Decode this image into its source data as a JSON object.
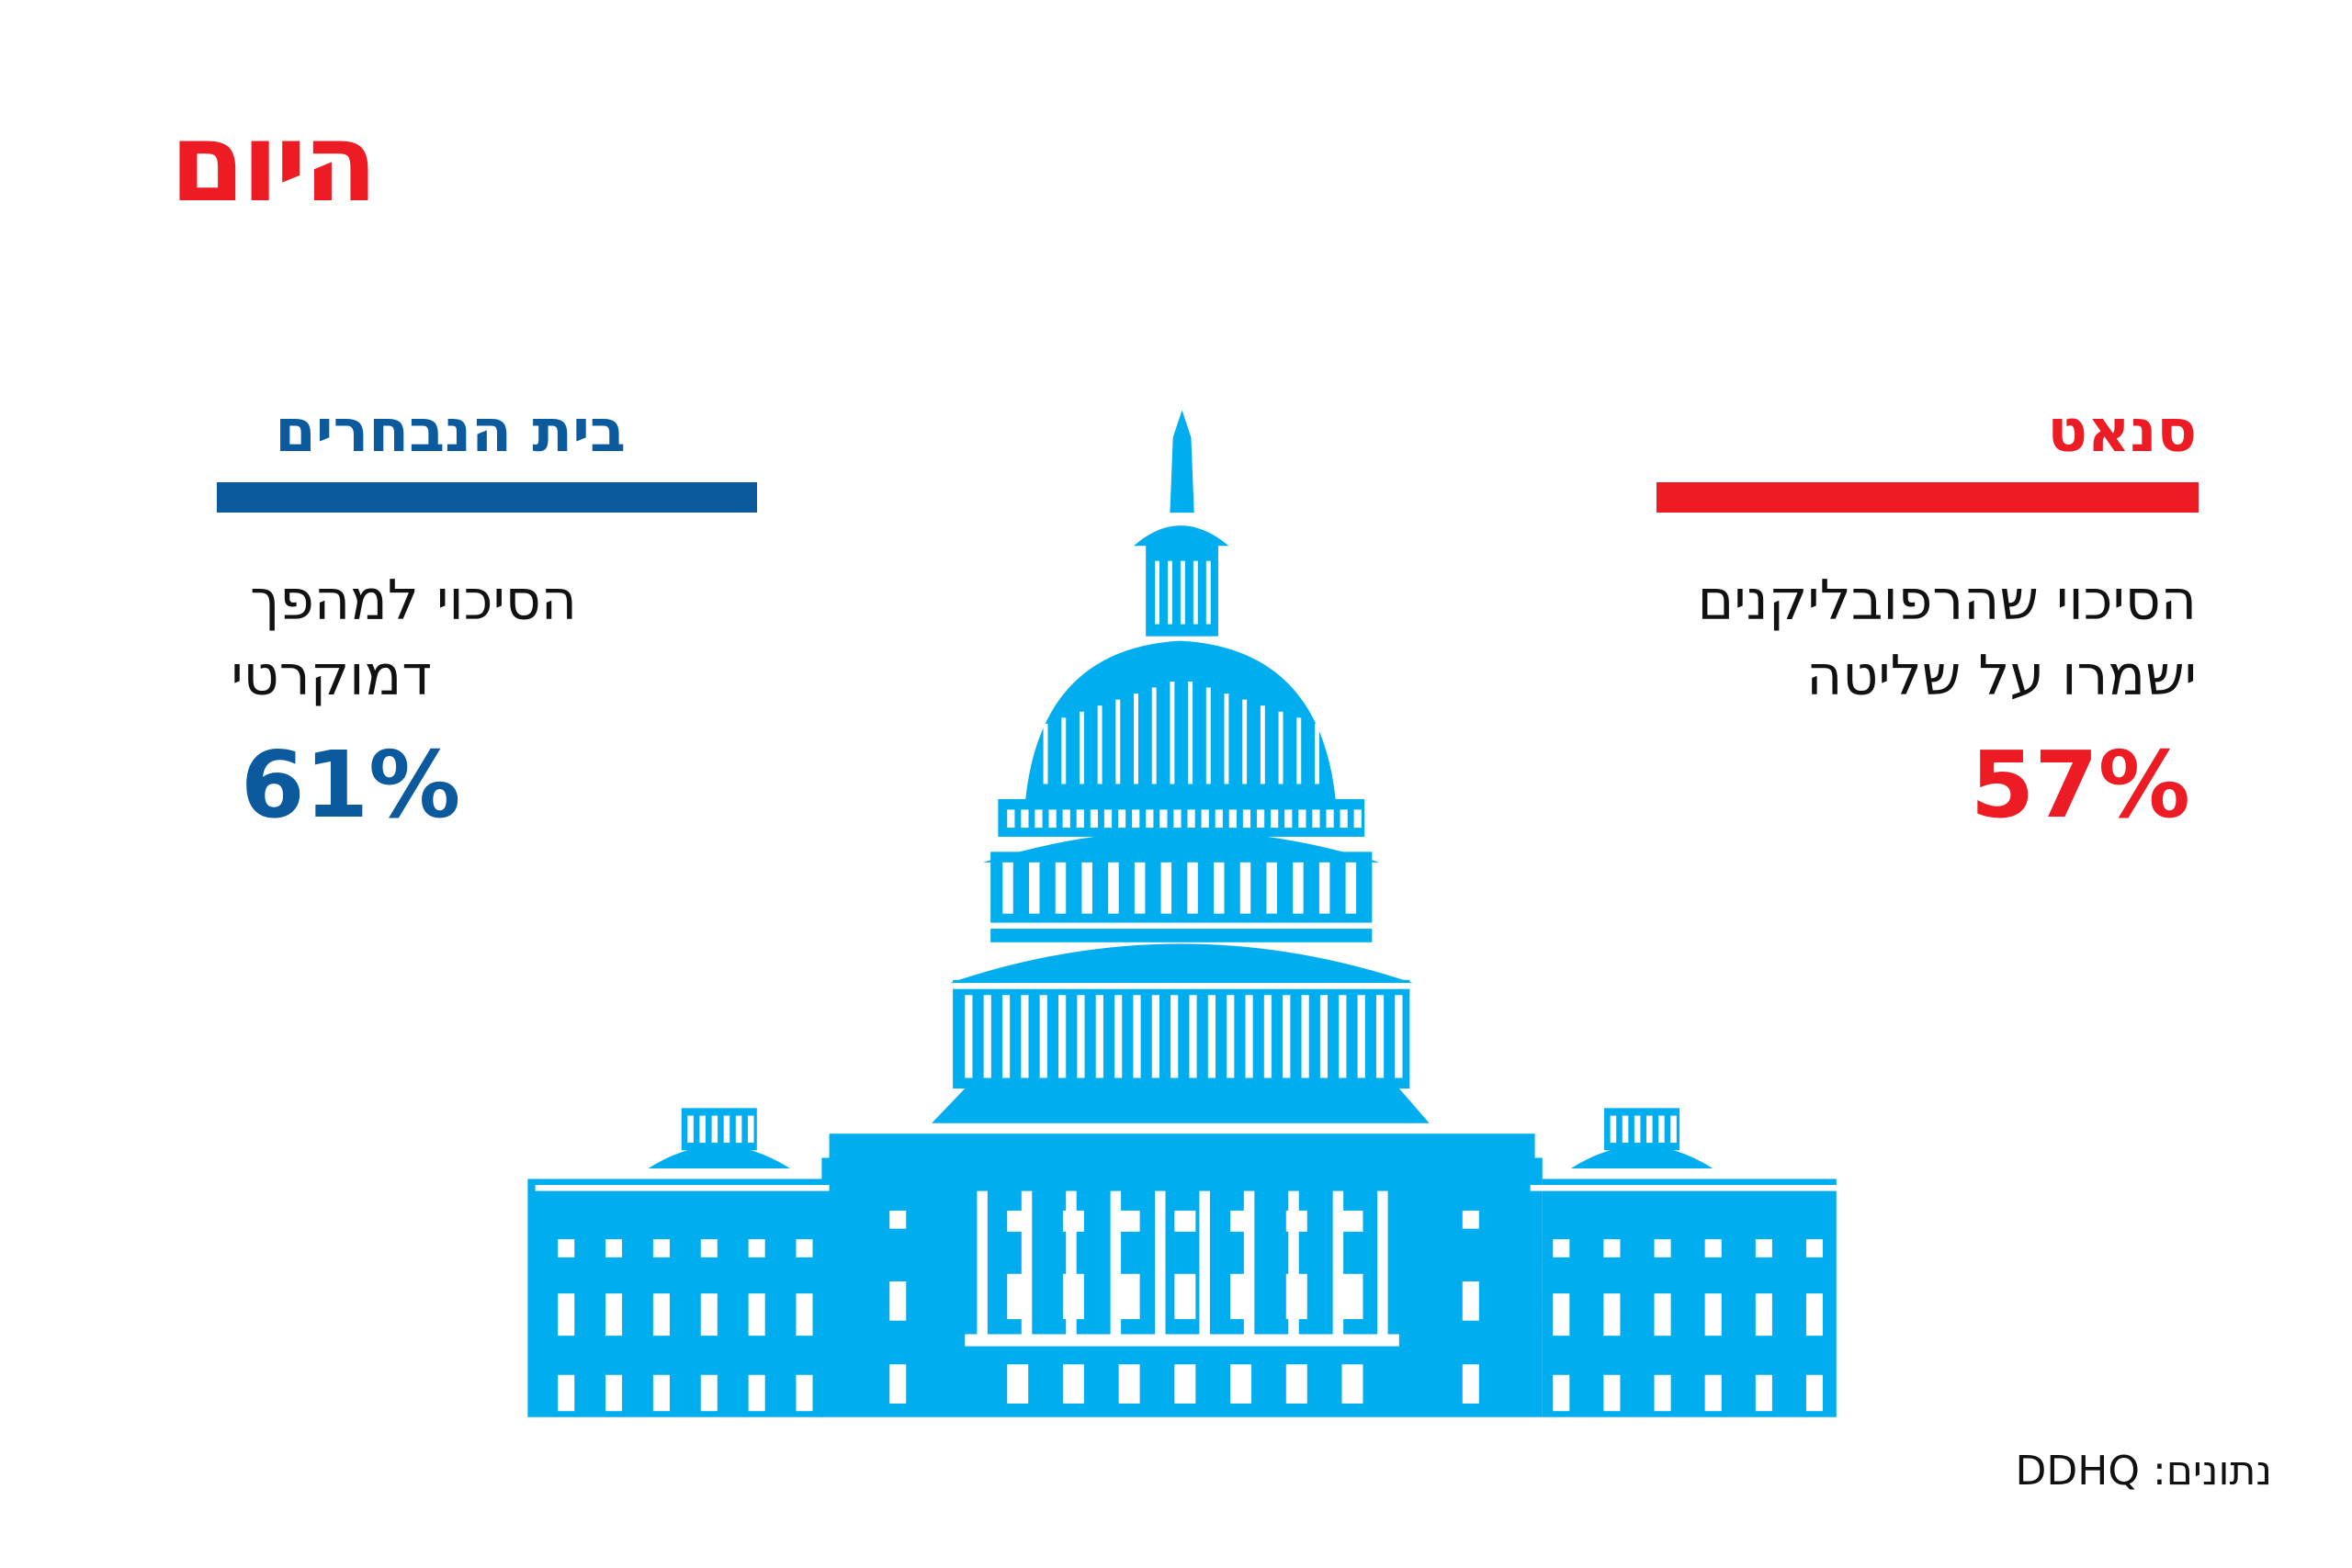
{
  "logo": "היום",
  "house": {
    "title": "בית הנבחרים",
    "text_lines": [
      "הסיכוי למהפך",
      "דמוקרטי"
    ],
    "value": "61%"
  },
  "senate": {
    "title": "סנאט",
    "text_lines": [
      "הסיכוי שהרפובליקנים",
      "ישמרו על שליטה"
    ],
    "value": "57%"
  },
  "source": "נתונים: DDHQ"
}
